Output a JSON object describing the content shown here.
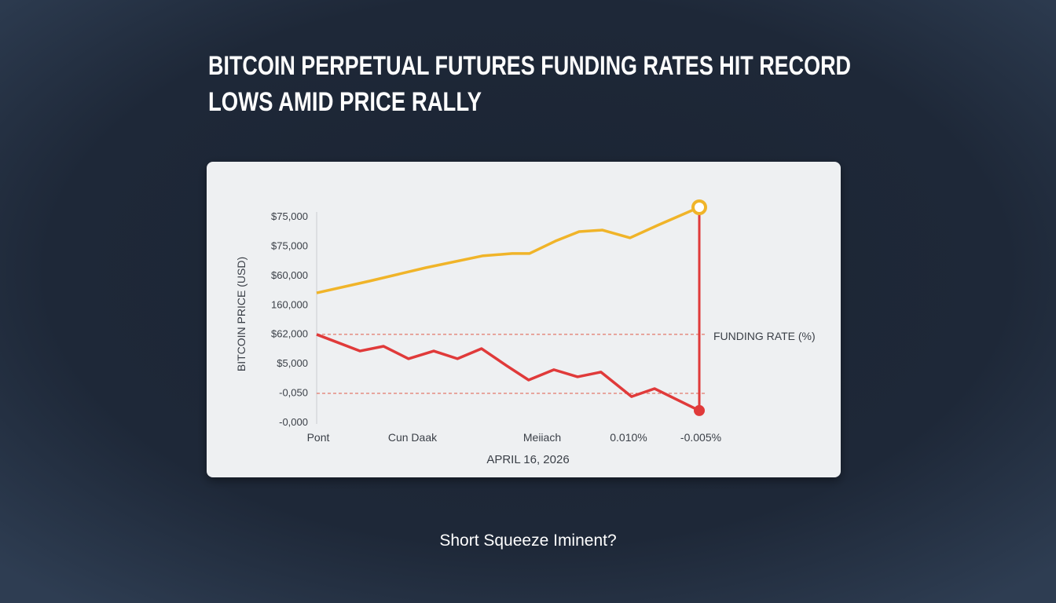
{
  "title_lines": [
    "BITCOIN PERPETUAL FUTURES FUNDING RATES HIT RECORD",
    "LOWS AMID PRICE RALLY"
  ],
  "subtitle": "Short Squeeze Iminent?",
  "chart_data": {
    "type": "line",
    "y_axis_label": "BITCOIN PRICE (USD)",
    "x_axis_label": "APRIL 16, 2026",
    "annotation": "FUNDING RATE (%)",
    "y_labels": [
      "$75,000",
      "$75,000",
      "$60,000",
      "160,000",
      "$62,000",
      "$5,000",
      "-0,050",
      "-0,000"
    ],
    "x_labels": [
      "Pont",
      "Cun Daak",
      "Meiiach",
      "0.010%",
      "-0.005%"
    ],
    "xlim": [
      0,
      100
    ],
    "ylim": [
      0,
      100
    ],
    "reference_lines": [
      40.9,
      13.5
    ],
    "series": [
      {
        "name": "Bitcoin Price",
        "color": "#f0b429",
        "x": [
          0,
          13.8,
          28.5,
          43.3,
          51.1,
          55.6,
          62.4,
          68.6,
          74.7,
          81.9,
          89.1,
          100
        ],
        "values": [
          60.2,
          65.7,
          71.9,
          77.4,
          78.5,
          78.5,
          84.3,
          88.7,
          89.4,
          85.8,
          91.6,
          100
        ]
      },
      {
        "name": "Funding Rate",
        "color": "#e03a3a",
        "x": [
          0,
          11.3,
          17.5,
          24.0,
          30.6,
          36.8,
          43.1,
          49.7,
          55.4,
          62.0,
          68.2,
          74.3,
          82.3,
          88.3,
          100
        ],
        "values": [
          40.9,
          33.2,
          35.4,
          29.6,
          33.2,
          29.6,
          34.3,
          26.3,
          19.7,
          24.5,
          21.2,
          23.4,
          12.0,
          15.7,
          5.5
        ]
      }
    ]
  }
}
